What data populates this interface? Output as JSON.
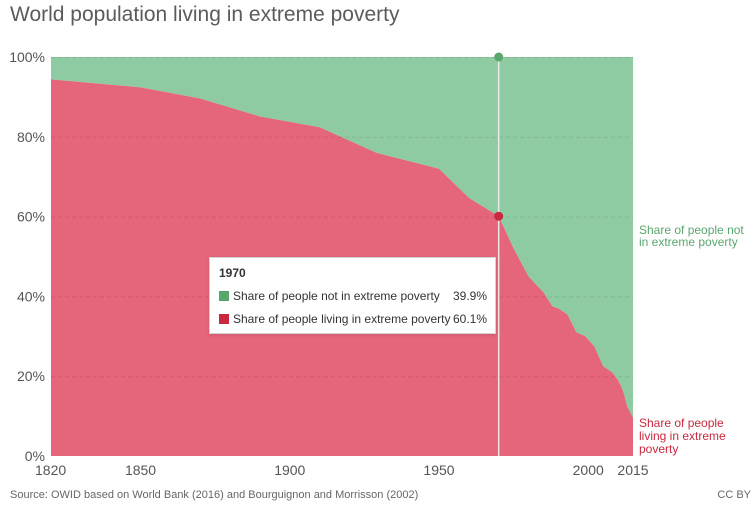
{
  "title": "World population living in extreme poverty",
  "colors": {
    "not_poor": "#8ecba2",
    "poor": "#e5657a",
    "not_poor_dot": "#5aa66f",
    "poor_dot": "#c9283e"
  },
  "chart_data": {
    "type": "area",
    "title": "World population living in extreme poverty",
    "xlabel": "",
    "ylabel": "",
    "x_ticks": [
      "1820",
      "1850",
      "1900",
      "1950",
      "2000",
      "2015"
    ],
    "y_ticks": [
      "0%",
      "20%",
      "40%",
      "60%",
      "80%",
      "100%"
    ],
    "xlim": [
      1820,
      2015
    ],
    "ylim": [
      0,
      100
    ],
    "grid": true,
    "stacked": true,
    "x": [
      1820,
      1850,
      1870,
      1890,
      1910,
      1929,
      1950,
      1960,
      1970,
      1975,
      1980,
      1985,
      1988,
      1990,
      1993,
      1996,
      1999,
      2002,
      2005,
      2008,
      2010,
      2011,
      2012,
      2013,
      2015
    ],
    "series": [
      {
        "name": "Share of people not in extreme poverty",
        "values": [
          5.6,
          7.6,
          10.4,
          14.9,
          17.6,
          24.0,
          28.0,
          35.3,
          39.9,
          48.0,
          55.0,
          59.0,
          62.5,
          63.0,
          64.5,
          69.0,
          70.0,
          72.5,
          77.5,
          79.0,
          81.0,
          82.5,
          84.5,
          87.5,
          90.4
        ]
      },
      {
        "name": "Share of people living in extreme poverty",
        "values": [
          94.4,
          92.4,
          89.6,
          85.1,
          82.4,
          76.0,
          72.0,
          64.7,
          60.1,
          52.0,
          45.0,
          41.0,
          37.5,
          37.0,
          35.5,
          31.0,
          30.0,
          27.5,
          22.5,
          21.0,
          19.0,
          17.5,
          15.5,
          12.5,
          9.6
        ]
      }
    ],
    "series_labels": [
      {
        "lines": [
          "Share of people not",
          "in extreme poverty"
        ]
      },
      {
        "lines": [
          "Share of people",
          "living in extreme",
          "poverty"
        ]
      }
    ],
    "hover": {
      "year": 1970,
      "year_label": "1970",
      "rows": [
        {
          "label": "Share of people not in extreme poverty",
          "value": "39.9%"
        },
        {
          "label": "Share of people living in extreme poverty",
          "value": "60.1%"
        }
      ]
    }
  },
  "source": "Source: OWID based on World Bank (2016) and Bourguignon and Morrisson (2002)",
  "license": "CC BY"
}
